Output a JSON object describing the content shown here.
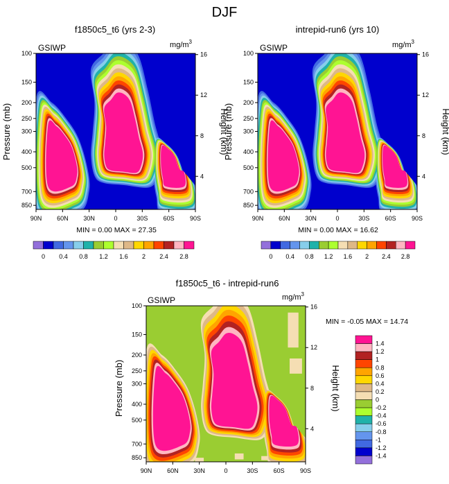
{
  "figure_title": "DJF",
  "chart_data": [
    {
      "type": "heatmap",
      "title": "f1850c5_t6 (yrs 2-3)",
      "left_label": "GSIWP",
      "units": "mg/m",
      "units_exp": "3",
      "ylabel": "Pressure (mb)",
      "ylabel_right": "Height (km)",
      "x_ticks": [
        "90N",
        "60N",
        "30N",
        "0",
        "30S",
        "60S",
        "90S"
      ],
      "y_ticks": [
        "100",
        "150",
        "200",
        "250",
        "300",
        "400",
        "500",
        "700",
        "850"
      ],
      "y_right_ticks": [
        "16",
        "12",
        "8",
        "4"
      ],
      "stats": "MIN =  0.00  MAX = 27.35",
      "levels": [
        0,
        0.2,
        0.4,
        0.6,
        0.8,
        1.0,
        1.2,
        1.4,
        1.6,
        1.8,
        2.0,
        2.2,
        2.4,
        2.6,
        2.8
      ],
      "colorbar_ticks": [
        "0",
        "0.4",
        "0.8",
        "1.2",
        "1.6",
        "2",
        "2.4",
        "2.8"
      ],
      "colors": [
        "#9370db",
        "#0000cd",
        "#4169e1",
        "#6495ed",
        "#87ceeb",
        "#20b2aa",
        "#9acd32",
        "#adff2f",
        "#f5deb3",
        "#deb887",
        "#ffd700",
        "#ffa500",
        "#ff4500",
        "#b22222",
        "#ffb6c1",
        "#ff1493"
      ]
    },
    {
      "type": "heatmap",
      "title": "intrepid-run6 (yrs 10)",
      "left_label": "GSIWP",
      "units": "mg/m",
      "units_exp": "3",
      "ylabel": "Pressure (mb)",
      "ylabel_right": "Height (km)",
      "x_ticks": [
        "90N",
        "60N",
        "30N",
        "0",
        "30S",
        "60S",
        "90S"
      ],
      "y_ticks": [
        "100",
        "150",
        "200",
        "250",
        "300",
        "400",
        "500",
        "700",
        "850"
      ],
      "y_right_ticks": [
        "16",
        "12",
        "8",
        "4"
      ],
      "stats": "MIN =  0.00  MAX = 16.62",
      "levels": [
        0,
        0.2,
        0.4,
        0.6,
        0.8,
        1.0,
        1.2,
        1.4,
        1.6,
        1.8,
        2.0,
        2.2,
        2.4,
        2.6,
        2.8
      ],
      "colorbar_ticks": [
        "0",
        "0.4",
        "0.8",
        "1.2",
        "1.6",
        "2",
        "2.4",
        "2.8"
      ],
      "colors": [
        "#9370db",
        "#0000cd",
        "#4169e1",
        "#6495ed",
        "#87ceeb",
        "#20b2aa",
        "#9acd32",
        "#adff2f",
        "#f5deb3",
        "#deb887",
        "#ffd700",
        "#ffa500",
        "#ff4500",
        "#b22222",
        "#ffb6c1",
        "#ff1493"
      ]
    },
    {
      "type": "heatmap",
      "title": "f1850c5_t6 - intrepid-run6",
      "left_label": "GSIWP",
      "units": "mg/m",
      "units_exp": "3",
      "ylabel": "Pressure (mb)",
      "ylabel_right": "Height (km)",
      "x_ticks": [
        "90N",
        "60N",
        "30N",
        "0",
        "30S",
        "60S",
        "90S"
      ],
      "y_ticks": [
        "100",
        "150",
        "200",
        "250",
        "300",
        "400",
        "500",
        "700",
        "850"
      ],
      "y_right_ticks": [
        "16",
        "12",
        "8",
        "4"
      ],
      "stats": "MIN =  -0.05  MAX =  14.74",
      "levels": [
        -1.4,
        -1.2,
        -1,
        -0.8,
        -0.6,
        -0.4,
        -0.2,
        0,
        0.2,
        0.4,
        0.6,
        0.8,
        1,
        1.2,
        1.4
      ],
      "colorbar_ticks": [
        "1.4",
        "1.2",
        "1",
        "0.8",
        "0.6",
        "0.4",
        "0.2",
        "0",
        "-0.2",
        "-0.4",
        "-0.6",
        "-0.8",
        "-1",
        "-1.2",
        "-1.4"
      ],
      "colors": [
        "#ff1493",
        "#ffb6c1",
        "#b22222",
        "#ff4500",
        "#ffa500",
        "#ffd700",
        "#deb887",
        "#f5deb3",
        "#9acd32",
        "#adff2f",
        "#20b2aa",
        "#87ceeb",
        "#6495ed",
        "#4169e1",
        "#0000cd",
        "#9370db"
      ]
    }
  ]
}
